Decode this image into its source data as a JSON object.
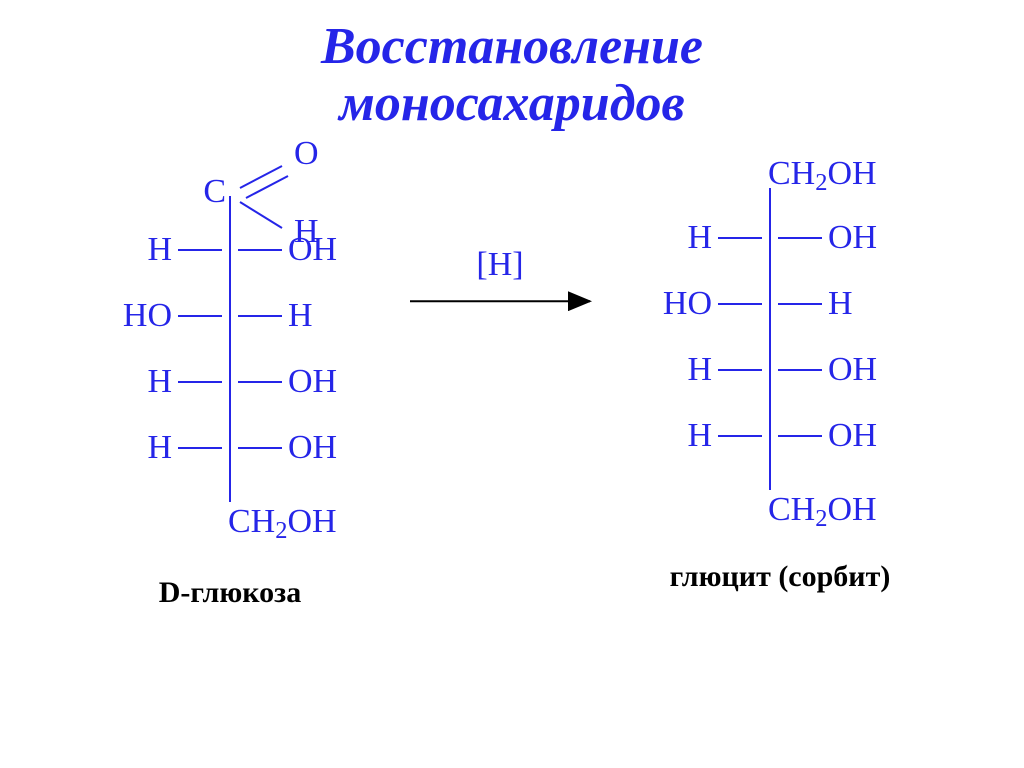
{
  "title": {
    "line1": "Восстановление",
    "line2": "моносахаридов",
    "color": "#2525e8",
    "fontsize": 52
  },
  "diagram": {
    "bond_color": "#2525e8",
    "atom_color": "#2525e8",
    "bond_width": 2,
    "atom_fontsize": 34,
    "reagent": "[H]",
    "reagent_fontsize": 34,
    "reagent_color": "#2525e8",
    "arrow_color": "#000000",
    "caption_fontsize": 30,
    "caption_color": "#000000",
    "left": {
      "caption": "D-глюкоза",
      "top_has_aldehyde": true,
      "top_label_C": "C",
      "top_O": "O",
      "top_H": "H",
      "rows": [
        {
          "left": "H",
          "right": "OH"
        },
        {
          "left": "HO",
          "right": "H"
        },
        {
          "left": "H",
          "right": "OH"
        },
        {
          "left": "H",
          "right": "OH"
        }
      ],
      "bottom_ch2oh_C": "CH",
      "bottom_ch2oh_sub": "2",
      "bottom_ch2oh_OH": "OH"
    },
    "right": {
      "caption": "глюцит (сорбит)",
      "top_ch2oh_C": "CH",
      "top_ch2oh_sub": "2",
      "top_ch2oh_OH": "OH",
      "rows": [
        {
          "left": "H",
          "right": "OH"
        },
        {
          "left": "HO",
          "right": "H"
        },
        {
          "left": "H",
          "right": "OH"
        },
        {
          "left": "H",
          "right": "OH"
        }
      ],
      "bottom_ch2oh_C": "CH",
      "bottom_ch2oh_sub": "2",
      "bottom_ch2oh_OH": "OH"
    }
  }
}
